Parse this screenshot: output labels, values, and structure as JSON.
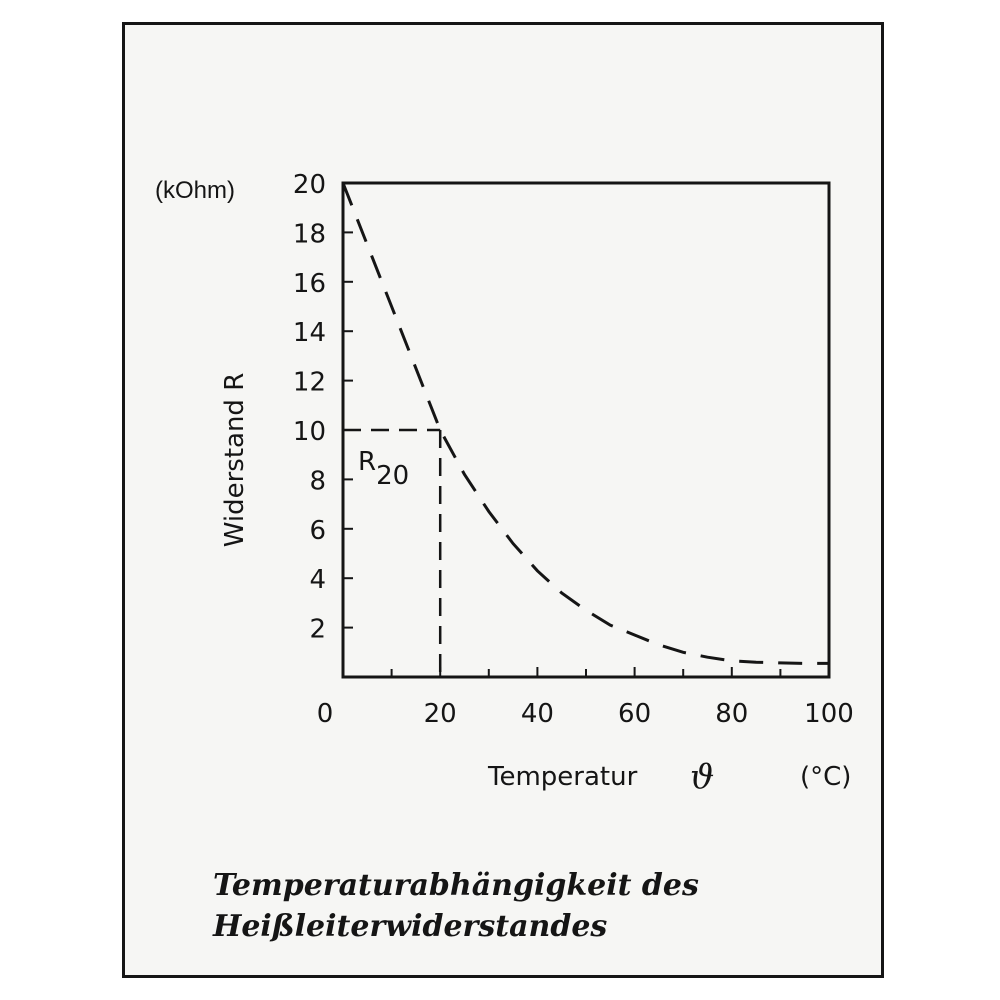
{
  "chart_data": {
    "type": "line",
    "ylabel": "Widerstand R",
    "yunit": "(kOhm)",
    "xlabel": "Temperatur",
    "xsymbol": "ϑ",
    "xunit": "(°C)",
    "xlim": [
      0,
      100
    ],
    "ylim": [
      0,
      20
    ],
    "x_ticks": [
      0,
      20,
      40,
      60,
      80,
      100
    ],
    "y_ticks": [
      2,
      4,
      6,
      8,
      10,
      12,
      14,
      16,
      18,
      20
    ],
    "grid": false,
    "line_style": "dashed",
    "color": "#151515",
    "series": [
      {
        "x": [
          0,
          5,
          10,
          15,
          20,
          25,
          30,
          35,
          40,
          45,
          50,
          55,
          60,
          65,
          70,
          75,
          80,
          85,
          90,
          95,
          100
        ],
        "y": [
          20.0,
          17.5,
          15.0,
          12.5,
          10.0,
          8.2,
          6.7,
          5.4,
          4.3,
          3.4,
          2.7,
          2.1,
          1.7,
          1.3,
          1.0,
          0.8,
          0.65,
          0.6,
          0.57,
          0.55,
          0.55
        ]
      }
    ],
    "annotations": [
      {
        "text": "R",
        "subscript": "20",
        "x": 20,
        "y": 10,
        "guide_lines": "dashed"
      }
    ],
    "caption": [
      "Temperaturabhängigkeit des",
      "Heißleiterwiderstandes"
    ]
  }
}
